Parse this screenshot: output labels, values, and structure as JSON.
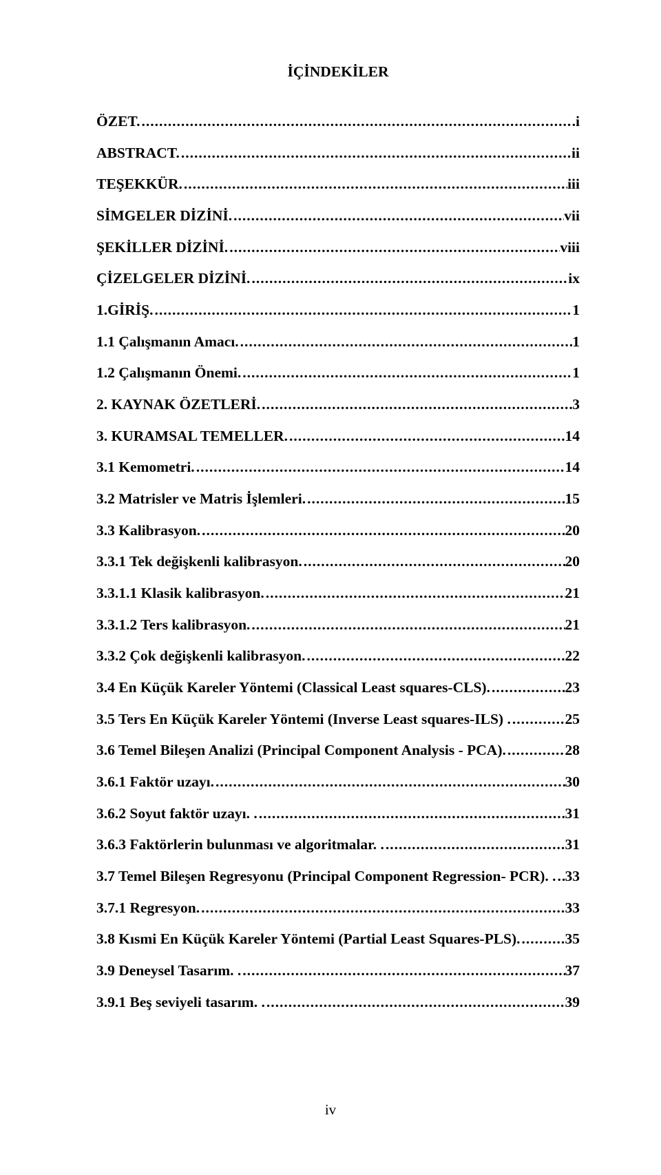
{
  "title": "İÇİNDEKİLER",
  "footer": "iv",
  "entries": [
    {
      "label": "ÖZET.",
      "page": ".i"
    },
    {
      "label": "ABSTRACT.",
      "page": "ii"
    },
    {
      "label": "TEŞEKKÜR.",
      "page": "iii"
    },
    {
      "label": "SİMGELER DİZİNİ.",
      "page": "vii"
    },
    {
      "label": "ŞEKİLLER DİZİNİ.",
      "page": "viii"
    },
    {
      "label": "ÇİZELGELER DİZİNİ.",
      "page": "ix"
    },
    {
      "label": "1.GİRİŞ.",
      "page": "1"
    },
    {
      "label": "1.1 Çalışmanın Amacı.",
      "page": "1"
    },
    {
      "label": "1.2 Çalışmanın Önemi.",
      "page": "1"
    },
    {
      "label": "2. KAYNAK ÖZETLERİ.",
      "page": "3"
    },
    {
      "label": "3. KURAMSAL TEMELLER.",
      "page": "14"
    },
    {
      "label": "3.1 Kemometri.",
      "page": "14"
    },
    {
      "label": "3.2 Matrisler ve Matris İşlemleri.",
      "page": "15"
    },
    {
      "label": "3.3 Kalibrasyon.",
      "page": "20"
    },
    {
      "label": "3.3.1 Tek değişkenli kalibrasyon.",
      "page": "20"
    },
    {
      "label": "3.3.1.1 Klasik kalibrasyon.",
      "page": "21"
    },
    {
      "label": "3.3.1.2 Ters kalibrasyon.",
      "page": "21"
    },
    {
      "label": "3.3.2 Çok değişkenli kalibrasyon.",
      "page": "22"
    },
    {
      "label": "3.4 En Küçük Kareler Yöntemi (Classical Least squares-CLS).",
      "page": "23"
    },
    {
      "label": "3.5 Ters En Küçük Kareler Yöntemi (Inverse Least squares-ILS) .",
      "page": "25"
    },
    {
      "label": "3.6 Temel Bileşen Analizi (Principal Component Analysis - PCA).",
      "page": "28"
    },
    {
      "label": "3.6.1 Faktör uzayı.",
      "page": "30"
    },
    {
      "label": "3.6.2 Soyut faktör uzayı. .",
      "page": "31"
    },
    {
      "label": "3.6.3 Faktörlerin bulunması ve algoritmalar. .",
      "page": "31"
    },
    {
      "label": "3.7 Temel Bileşen Regresyonu (Principal Component Regression- PCR). .",
      "page": "33"
    },
    {
      "label": "3.7.1 Regresyon.",
      "page": "33"
    },
    {
      "label": "3.8 Kısmi En Küçük Kareler Yöntemi (Partial Least Squares-PLS).",
      "page": "35"
    },
    {
      "label": "3.9 Deneysel Tasarım. .",
      "page": "37"
    },
    {
      "label": "3.9.1 Beş seviyeli tasarım. .",
      "page": "39"
    }
  ]
}
